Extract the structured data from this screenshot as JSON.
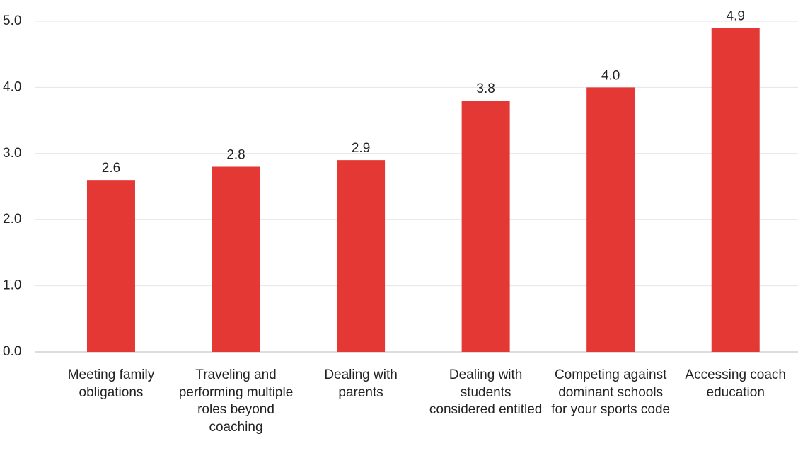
{
  "chart_data": {
    "type": "bar",
    "categories": [
      "Meeting family obligations",
      "Traveling and performing multiple roles beyond coaching",
      "Dealing with parents",
      "Dealing with students considered entitled",
      "Competing against dominant schools for your sports code",
      "Accessing coach education"
    ],
    "values": [
      2.6,
      2.8,
      2.9,
      3.8,
      4.0,
      4.9
    ],
    "value_labels": [
      "2.6",
      "2.8",
      "2.9",
      "3.8",
      "4.0",
      "4.9"
    ],
    "color": "#e33834",
    "ylim": [
      0,
      5
    ],
    "yticks": [
      {
        "value": 0,
        "label": "0.0"
      },
      {
        "value": 1,
        "label": "1.0"
      },
      {
        "value": 2,
        "label": "2.0"
      },
      {
        "value": 3,
        "label": "3.0"
      },
      {
        "value": 4,
        "label": "4.0"
      },
      {
        "value": 5,
        "label": "5.0"
      }
    ],
    "grid": true
  }
}
